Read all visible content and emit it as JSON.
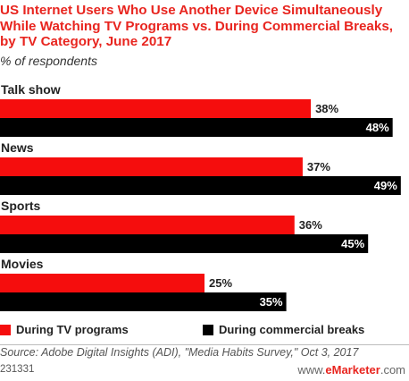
{
  "title": "US Internet Users Who Use Another Device Simultaneously While Watching TV Programs vs. During Commercial Breaks, by TV Category, June 2017",
  "subtitle": "% of respondents",
  "colors": {
    "tv_programs": "#f50d0d",
    "commercial_breaks": "#000000",
    "title": "#e8251f"
  },
  "legend": {
    "tv_programs": "During TV programs",
    "commercial_breaks": "During commercial breaks"
  },
  "source": "Source: Adobe Digital Insights (ADI), \"Media Habits Survey,\" Oct 3, 2017",
  "chart_id": "231331",
  "brand": {
    "prefix": "www.",
    "name": "eMarketer",
    "suffix": ".com"
  },
  "chart_data": {
    "type": "bar",
    "orientation": "horizontal",
    "categories": [
      "Talk show",
      "News",
      "Sports",
      "Movies"
    ],
    "series": [
      {
        "name": "During TV programs",
        "values": [
          38,
          37,
          36,
          25
        ]
      },
      {
        "name": "During commercial breaks",
        "values": [
          48,
          49,
          45,
          35
        ]
      }
    ],
    "value_suffix": "%",
    "xlim": [
      0,
      50
    ],
    "grid": false,
    "legend_position": "bottom"
  }
}
